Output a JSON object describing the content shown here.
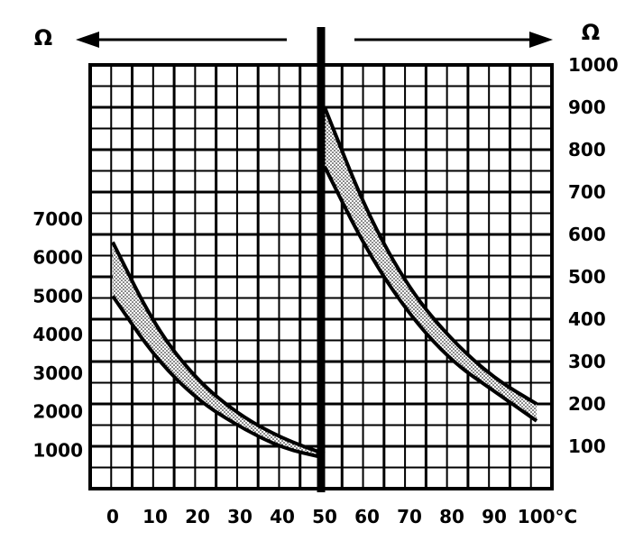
{
  "chart_data": {
    "type": "area",
    "units": {
      "left": "Ω",
      "right": "Ω",
      "x": "°C"
    },
    "x_ticks": [
      "0",
      "10",
      "20",
      "30",
      "40",
      "50",
      "60",
      "70",
      "80",
      "90",
      "100"
    ],
    "x_unit_suffix": "°C",
    "left_axis": {
      "ticks": [
        "7000",
        "6000",
        "5000",
        "4000",
        "3000",
        "2000",
        "1000"
      ],
      "tick_values": [
        7000,
        6000,
        5000,
        4000,
        3000,
        2000,
        1000
      ],
      "range": [
        0,
        11000
      ],
      "x_range": [
        0,
        50
      ]
    },
    "right_axis": {
      "ticks": [
        "1000",
        "900",
        "800",
        "700",
        "600",
        "500",
        "400",
        "300",
        "200",
        "100"
      ],
      "tick_values": [
        1000,
        900,
        800,
        700,
        600,
        500,
        400,
        300,
        200,
        100
      ],
      "range": [
        0,
        1000
      ],
      "x_range": [
        50,
        100
      ]
    },
    "grid": true,
    "series": [
      {
        "axis": "left",
        "x": [
          0,
          10,
          20,
          30,
          40,
          50
        ],
        "upper": [
          6400,
          4200,
          2800,
          1900,
          1300,
          900
        ],
        "lower": [
          5000,
          3400,
          2300,
          1600,
          1050,
          800
        ]
      },
      {
        "axis": "right",
        "x": [
          50,
          60,
          70,
          80,
          90,
          100
        ],
        "upper": [
          900,
          650,
          470,
          350,
          260,
          200
        ],
        "lower": [
          760,
          560,
          410,
          300,
          230,
          160
        ]
      }
    ]
  }
}
